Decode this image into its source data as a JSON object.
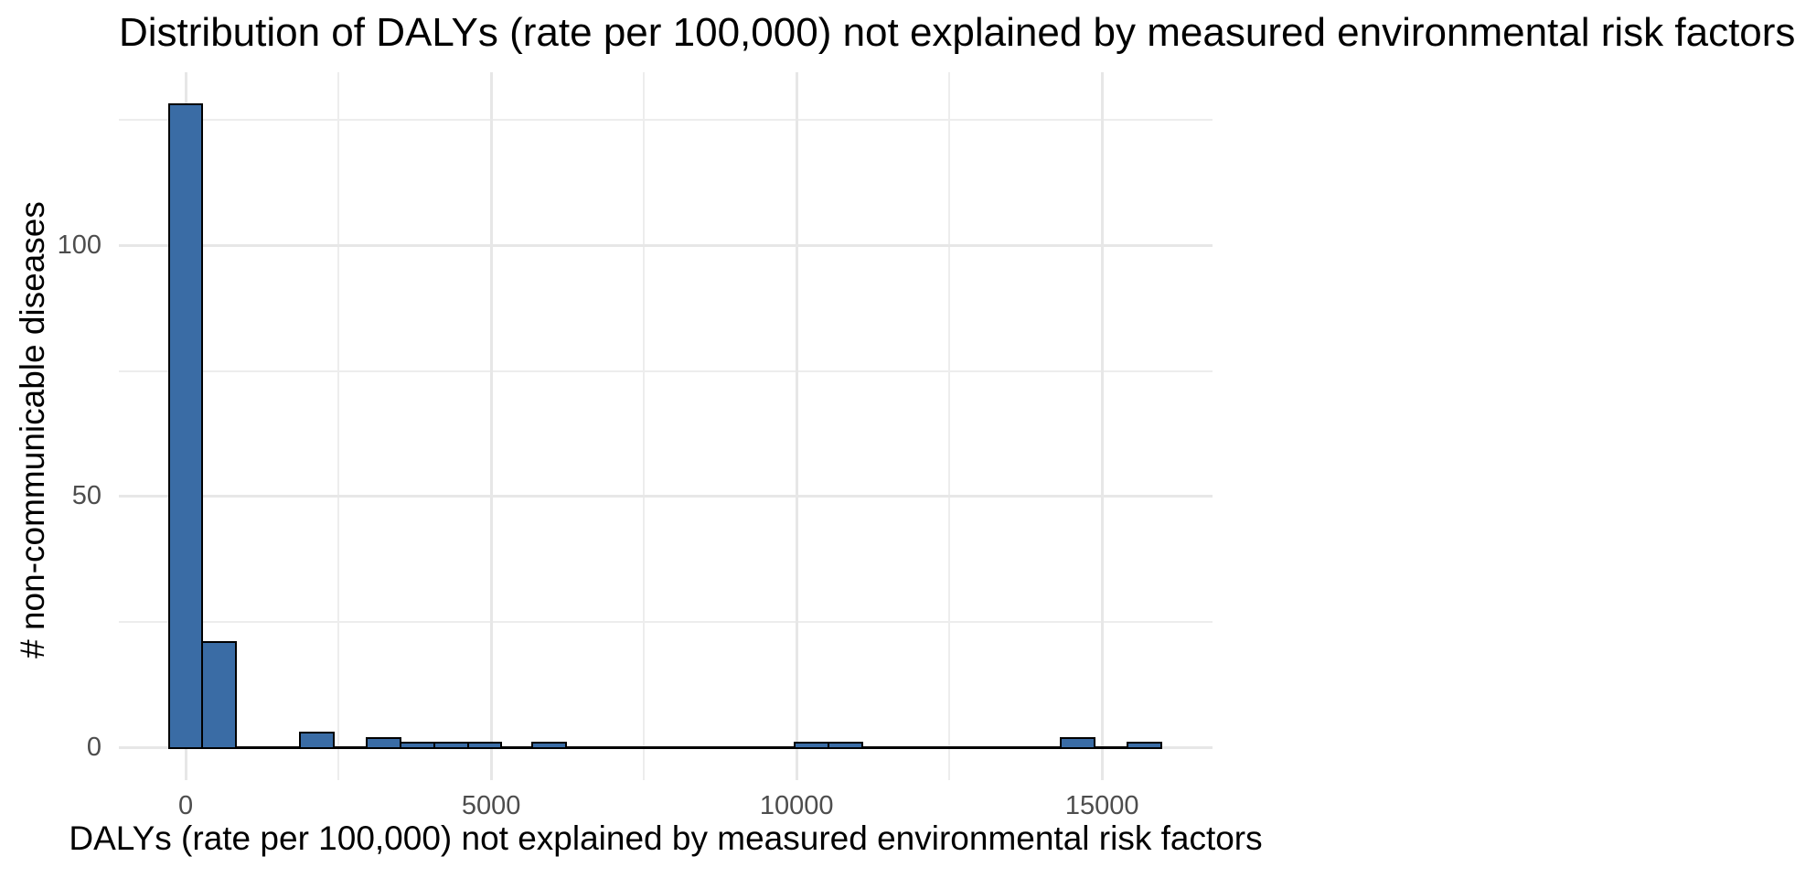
{
  "chart_data": {
    "type": "bar",
    "subtype": "histogram",
    "title": "Distribution of DALYs (rate per 100,000) not explained by measured environmental risk factors",
    "xlabel": "DALYs (rate per 100,000) not explained by measured environmental risk factors",
    "ylabel": "# non-communicable diseases",
    "xlim": [
      -1093,
      16807
    ],
    "ylim": [
      -6.4,
      134.4
    ],
    "x_ticks": [
      0,
      5000,
      10000,
      15000
    ],
    "x_minor_ticks": [
      2500,
      7500,
      12500
    ],
    "y_ticks": [
      0,
      50,
      100
    ],
    "y_minor_ticks": [
      25,
      75,
      125
    ],
    "grid": "on",
    "legend": "none",
    "binwidth": 550,
    "bins": [
      {
        "x0": -275,
        "x1": 275,
        "count": 128
      },
      {
        "x0": 275,
        "x1": 825,
        "count": 21
      },
      {
        "x0": 1870,
        "x1": 2420,
        "count": 3
      },
      {
        "x0": 2970,
        "x1": 3520,
        "count": 2
      },
      {
        "x0": 3520,
        "x1": 4070,
        "count": 1
      },
      {
        "x0": 4070,
        "x1": 4620,
        "count": 1
      },
      {
        "x0": 4620,
        "x1": 5170,
        "count": 1
      },
      {
        "x0": 5670,
        "x1": 6220,
        "count": 1
      },
      {
        "x0": 9970,
        "x1": 10520,
        "count": 1
      },
      {
        "x0": 10520,
        "x1": 11070,
        "count": 1
      },
      {
        "x0": 14320,
        "x1": 14870,
        "count": 2
      },
      {
        "x0": 15420,
        "x1": 15970,
        "count": 1
      }
    ],
    "zero_baseline": true,
    "colors": {
      "bar_fill": "#3A6CA5",
      "bar_stroke": "#000000",
      "grid_major": "#E7E7E7",
      "grid_minor": "#EDEDED",
      "tick_text": "#4D4D4D",
      "title_text": "#000000",
      "background": "#FFFFFF"
    }
  }
}
